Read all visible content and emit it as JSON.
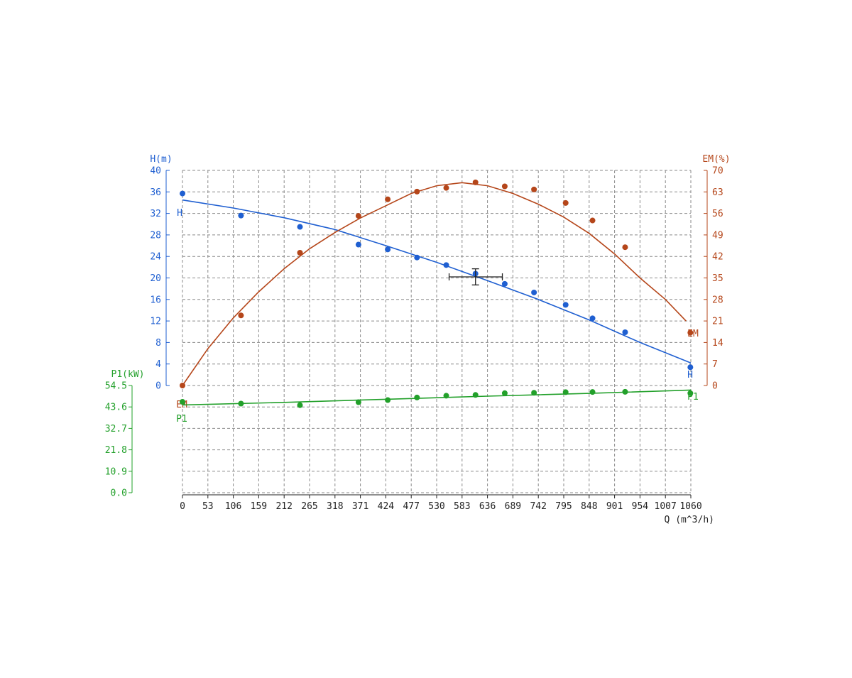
{
  "chart_data": {
    "type": "line",
    "title": "",
    "grid": true,
    "xlabel": "Q (m^3/h)",
    "x_ticks": [
      "0",
      "53",
      "106",
      "159",
      "212",
      "265",
      "318",
      "371",
      "424",
      "477",
      "530",
      "583",
      "636",
      "689",
      "742",
      "795",
      "848",
      "901",
      "954",
      "1007",
      "1060"
    ],
    "xlim": [
      0,
      1060
    ],
    "axes": {
      "H": {
        "label": "H(m)",
        "ylim": [
          0,
          40
        ],
        "ticks": [
          "0",
          "4",
          "8",
          "12",
          "16",
          "20",
          "24",
          "28",
          "32",
          "36",
          "40"
        ],
        "side": "left",
        "color": "#1f5fd1"
      },
      "EM": {
        "label": "EM(%)",
        "ylim": [
          0,
          70
        ],
        "ticks": [
          "0",
          "7",
          "14",
          "21",
          "28",
          "35",
          "42",
          "49",
          "56",
          "63",
          "70"
        ],
        "side": "right",
        "color": "#b5461a"
      },
      "P1": {
        "label": "P1(kW)",
        "ylim": [
          0,
          54.5
        ],
        "ticks": [
          "0.0",
          "10.9",
          "21.8",
          "32.7",
          "43.6",
          "54.5"
        ],
        "side": "left-lower",
        "color": "#22a02a"
      }
    },
    "series": [
      {
        "name": "H",
        "axis": "H",
        "color": "#1f5fd1",
        "points": [
          [
            0,
            35.7
          ],
          [
            122,
            31.6
          ],
          [
            245,
            29.5
          ],
          [
            367,
            26.2
          ],
          [
            428,
            25.3
          ],
          [
            489,
            23.8
          ],
          [
            550,
            22.4
          ],
          [
            611,
            20.8
          ],
          [
            672,
            18.9
          ],
          [
            733,
            17.3
          ],
          [
            799,
            15
          ],
          [
            855,
            12.5
          ],
          [
            923,
            9.9
          ],
          [
            1059,
            3.4
          ]
        ],
        "curve": [
          [
            0,
            34.5
          ],
          [
            106,
            33.0
          ],
          [
            212,
            31.2
          ],
          [
            318,
            29.0
          ],
          [
            424,
            26.0
          ],
          [
            530,
            22.9
          ],
          [
            636,
            19.5
          ],
          [
            742,
            16.0
          ],
          [
            848,
            12.2
          ],
          [
            954,
            8.0
          ],
          [
            1060,
            4.2
          ]
        ]
      },
      {
        "name": "EM",
        "axis": "EM",
        "color": "#b5461a",
        "points": [
          [
            0,
            0
          ],
          [
            122,
            22.8
          ],
          [
            245,
            43.2
          ],
          [
            367,
            55.2
          ],
          [
            428,
            60.6
          ],
          [
            489,
            63.1
          ],
          [
            550,
            64.3
          ],
          [
            611,
            66.1
          ],
          [
            672,
            64.8
          ],
          [
            733,
            63.8
          ],
          [
            799,
            59.4
          ],
          [
            855,
            53.7
          ],
          [
            923,
            45.0
          ],
          [
            1059,
            17.2
          ]
        ],
        "curve": [
          [
            0,
            0
          ],
          [
            53,
            12
          ],
          [
            106,
            22
          ],
          [
            159,
            30.5
          ],
          [
            212,
            38
          ],
          [
            265,
            44.5
          ],
          [
            318,
            49.8
          ],
          [
            371,
            54.5
          ],
          [
            424,
            58.5
          ],
          [
            477,
            62.5
          ],
          [
            530,
            65.0
          ],
          [
            583,
            66.0
          ],
          [
            636,
            65.0
          ],
          [
            689,
            62.5
          ],
          [
            742,
            59.0
          ],
          [
            795,
            54.8
          ],
          [
            848,
            49.5
          ],
          [
            901,
            42.8
          ],
          [
            954,
            35.0
          ],
          [
            1007,
            28.0
          ],
          [
            1050,
            21.0
          ]
        ]
      },
      {
        "name": "P1",
        "axis": "P1",
        "color": "#22a02a",
        "points": [
          [
            0,
            46.2
          ],
          [
            122,
            45.3
          ],
          [
            245,
            44.5
          ],
          [
            367,
            46.0
          ],
          [
            428,
            47.1
          ],
          [
            489,
            48.4
          ],
          [
            550,
            49.3
          ],
          [
            611,
            49.7
          ],
          [
            672,
            50.6
          ],
          [
            733,
            50.8
          ],
          [
            799,
            51.1
          ],
          [
            855,
            51.2
          ],
          [
            923,
            51.3
          ],
          [
            1059,
            50.6
          ]
        ],
        "curve": [
          [
            0,
            44.6
          ],
          [
            212,
            45.9
          ],
          [
            424,
            47.5
          ],
          [
            636,
            49.1
          ],
          [
            848,
            50.5
          ],
          [
            1060,
            52.2
          ]
        ]
      }
    ],
    "operating_point": {
      "x": 611,
      "y": 20.2,
      "axis": "H",
      "x_error": [
        556,
        667
      ],
      "y_error": [
        18.7,
        21.7
      ],
      "color": "#222222"
    }
  }
}
